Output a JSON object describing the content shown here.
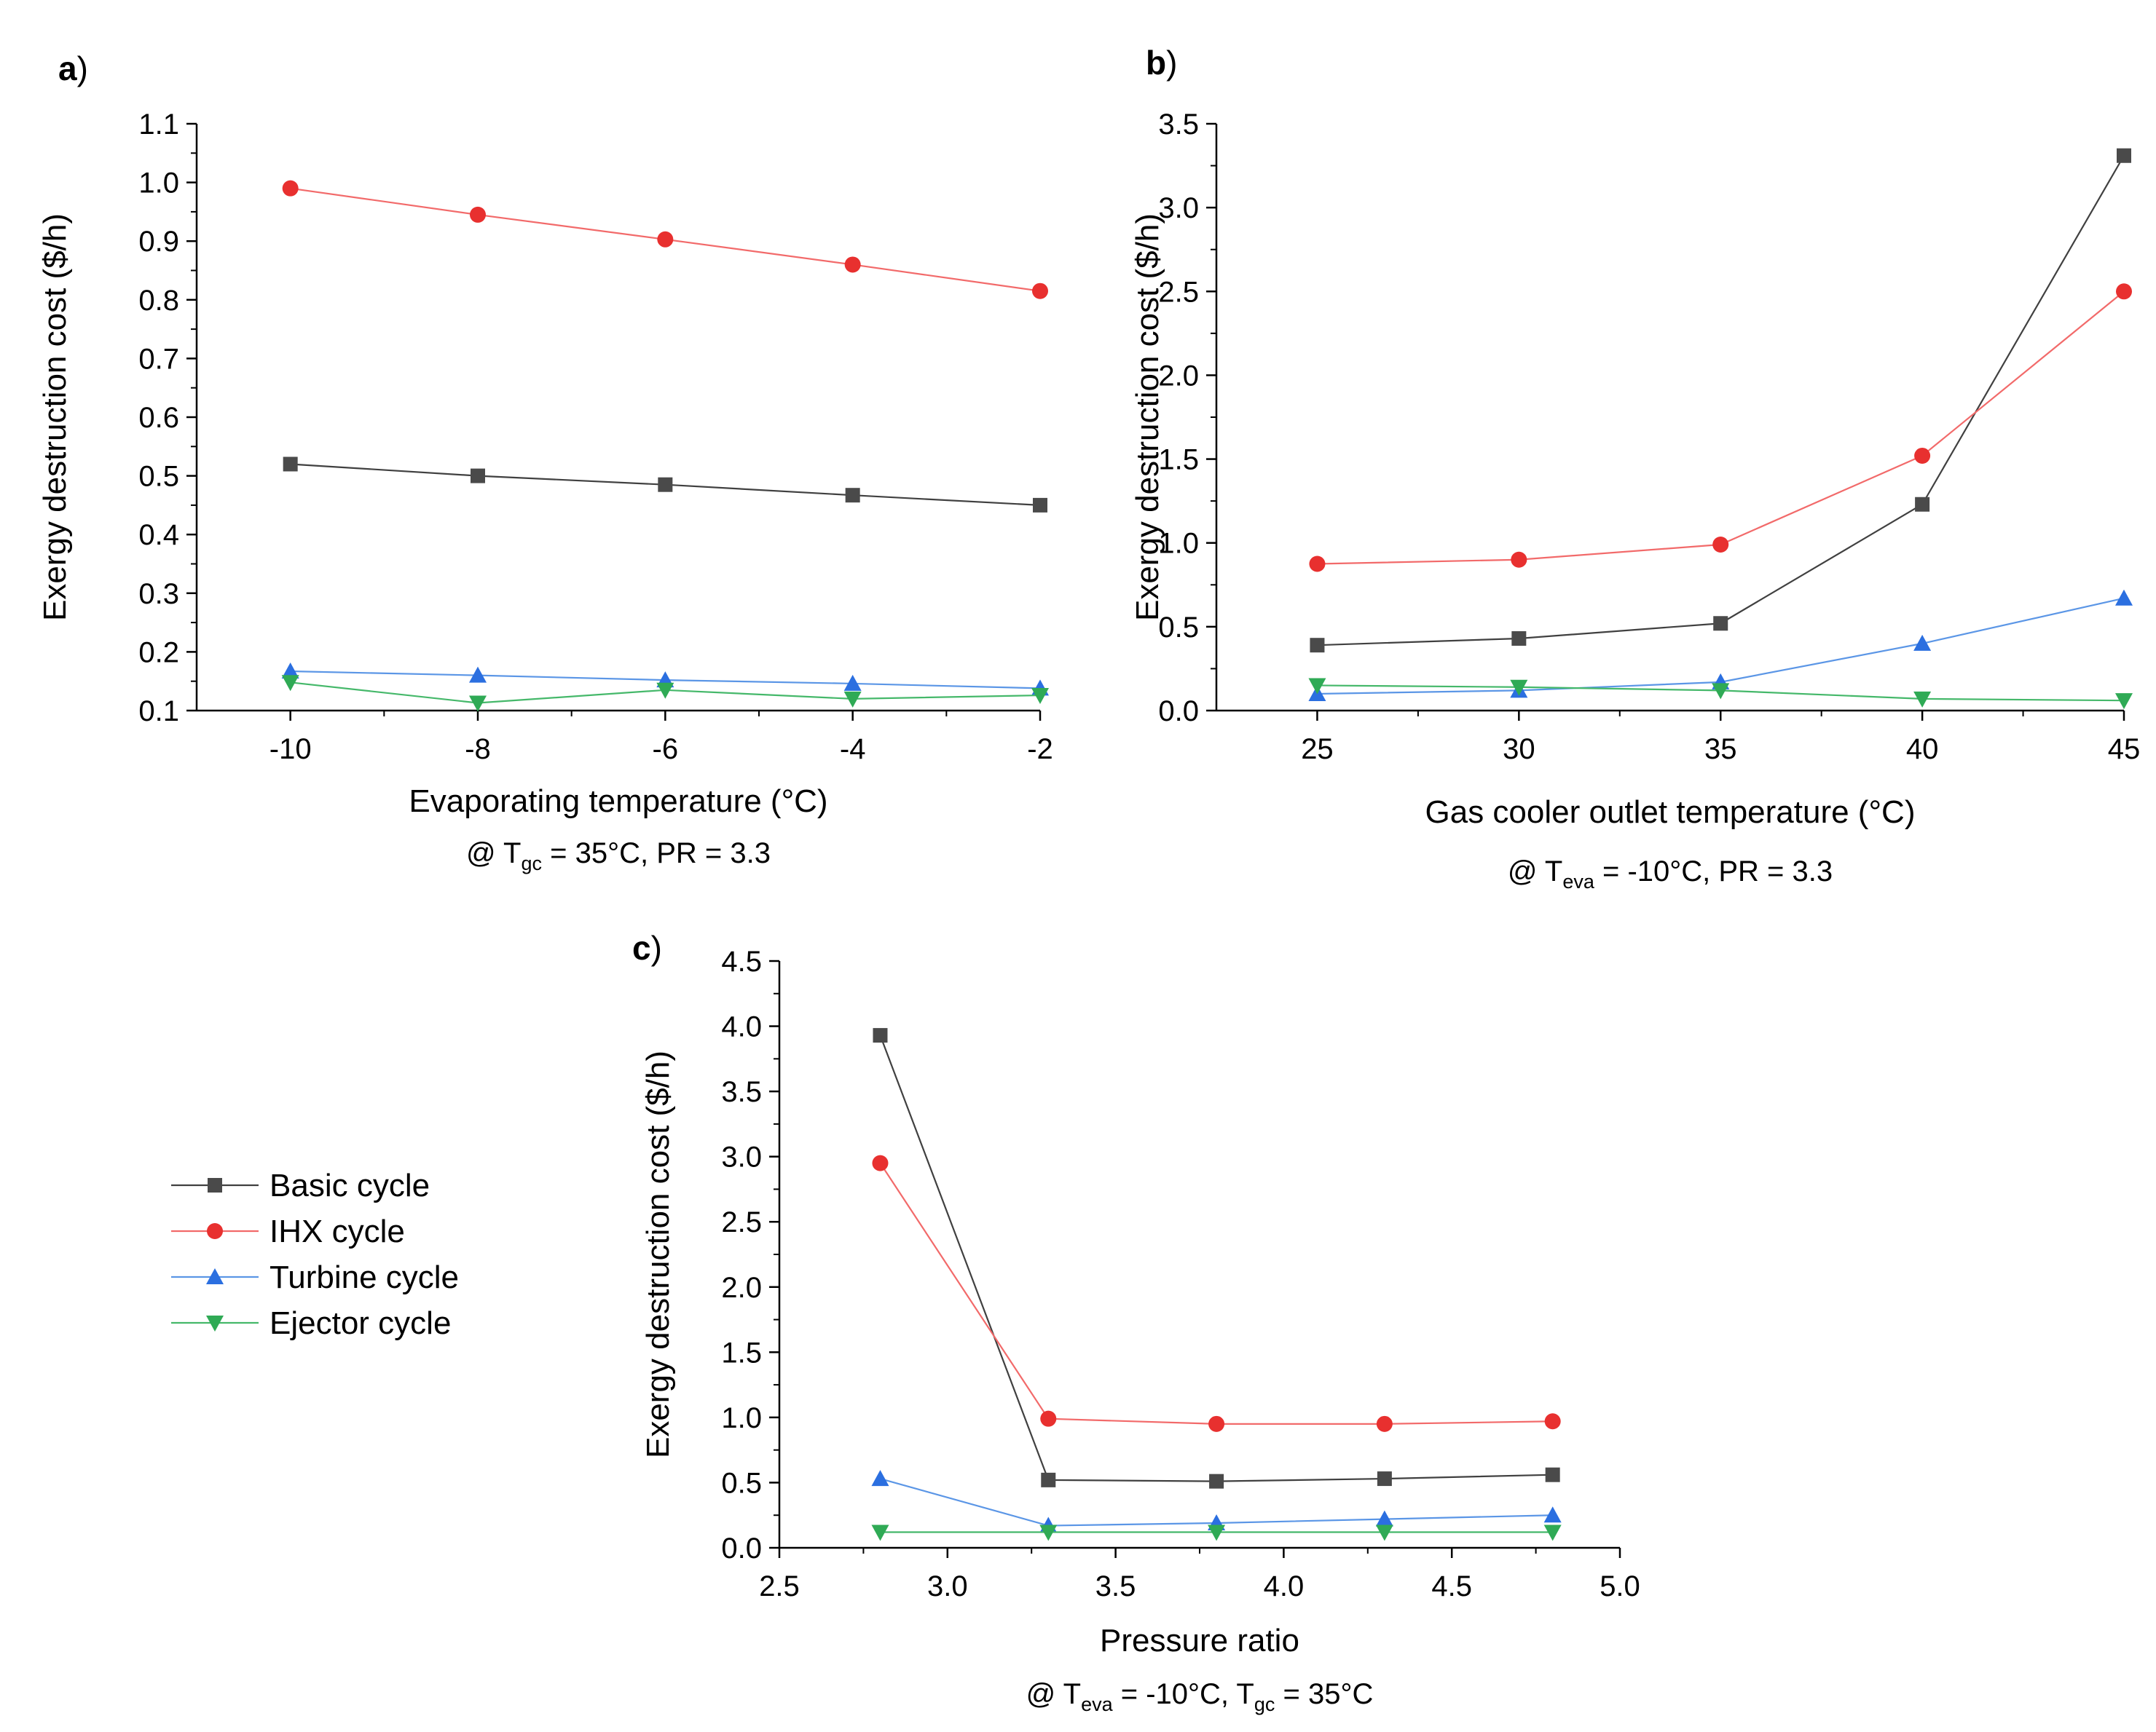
{
  "legend": {
    "entries": [
      {
        "label": "Basic cycle",
        "marker": "square",
        "color": "#404040",
        "marker_color": "#4a4a4a"
      },
      {
        "label": "IHX cycle",
        "marker": "circle",
        "color": "#f26a6a",
        "marker_color": "#e8302f"
      },
      {
        "label": "Turbine cycle",
        "marker": "triangle-up",
        "color": "#5b96e6",
        "marker_color": "#2b6fe0"
      },
      {
        "label": "Ejector cycle",
        "marker": "triangle-down",
        "color": "#45b86a",
        "marker_color": "#2faa55"
      }
    ]
  },
  "chart_data": [
    {
      "panel_letter": "a",
      "panel_paren": ")",
      "type": "line",
      "title": "",
      "xlabel": "Evaporating temperature (°C)",
      "ylabel": "Exergy destruction cost ($/h)",
      "subtitle": {
        "prefix": "@ T",
        "sub1": "gc",
        "mid": " = 35°C, PR = 3.3",
        "sub2": "",
        "suffix": ""
      },
      "xlim": [
        -11,
        -2
      ],
      "ylim": [
        0.1,
        1.1
      ],
      "xticks": [
        -10,
        -8,
        -6,
        -4,
        -2
      ],
      "xtick_labels": [
        "-10",
        "-8",
        "-6",
        "-4",
        "-2"
      ],
      "yticks": [
        0.1,
        0.2,
        0.3,
        0.4,
        0.5,
        0.6,
        0.7,
        0.8,
        0.9,
        1.0,
        1.1
      ],
      "ytick_labels": [
        "0.1",
        "0.2",
        "0.3",
        "0.4",
        "0.5",
        "0.6",
        "0.7",
        "0.8",
        "0.9",
        "1.0",
        "1.1"
      ],
      "x": [
        -10,
        -8,
        -6,
        -4,
        -2
      ],
      "series": [
        {
          "name": "Basic cycle",
          "values": [
            0.52,
            0.5,
            0.485,
            0.467,
            0.45
          ]
        },
        {
          "name": "IHX cycle",
          "values": [
            0.99,
            0.945,
            0.903,
            0.86,
            0.815
          ]
        },
        {
          "name": "Turbine cycle",
          "values": [
            0.167,
            0.16,
            0.152,
            0.146,
            0.138
          ]
        },
        {
          "name": "Ejector cycle",
          "values": [
            0.148,
            0.113,
            0.135,
            0.12,
            0.126
          ]
        }
      ]
    },
    {
      "panel_letter": "b",
      "panel_paren": ")",
      "type": "line",
      "title": "",
      "xlabel": "Gas cooler outlet temperature (°C)",
      "ylabel": "Exergy destruction cost ($/h)",
      "subtitle": {
        "prefix": "@ T",
        "sub1": "eva",
        "mid": " = -10°C, PR = 3.3",
        "sub2": "",
        "suffix": ""
      },
      "xlim": [
        22.5,
        45
      ],
      "ylim": [
        0,
        3.5
      ],
      "xticks": [
        25,
        30,
        35,
        40,
        45
      ],
      "xtick_labels": [
        "25",
        "30",
        "35",
        "40",
        "45"
      ],
      "yticks": [
        0,
        0.5,
        1.0,
        1.5,
        2.0,
        2.5,
        3.0,
        3.5
      ],
      "ytick_labels": [
        "0.0",
        "0.5",
        "1.0",
        "1.5",
        "2.0",
        "2.5",
        "3.0",
        "3.5"
      ],
      "x": [
        25,
        30,
        35,
        40,
        45
      ],
      "series": [
        {
          "name": "Basic cycle",
          "values": [
            0.39,
            0.43,
            0.52,
            1.23,
            3.31
          ]
        },
        {
          "name": "IHX cycle",
          "values": [
            0.875,
            0.9,
            0.99,
            1.52,
            2.5
          ]
        },
        {
          "name": "Turbine cycle",
          "values": [
            0.1,
            0.12,
            0.17,
            0.4,
            0.67
          ]
        },
        {
          "name": "Ejector cycle",
          "values": [
            0.15,
            0.14,
            0.12,
            0.07,
            0.06
          ]
        }
      ]
    },
    {
      "panel_letter": "c",
      "panel_paren": ")",
      "type": "line",
      "title": "",
      "xlabel": "Pressure ratio",
      "ylabel": "Exergy destruction cost ($/h)",
      "subtitle": {
        "prefix": "@ T",
        "sub1": "eva",
        "mid": " = -10°C, T",
        "sub2": "gc",
        "suffix": " = 35°C"
      },
      "xlim": [
        2.5,
        5.0
      ],
      "ylim": [
        0,
        4.5
      ],
      "xticks": [
        2.5,
        3.0,
        3.5,
        4.0,
        4.5,
        5.0
      ],
      "xtick_labels": [
        "2.5",
        "3.0",
        "3.5",
        "4.0",
        "4.5",
        "5.0"
      ],
      "yticks": [
        0,
        0.5,
        1.0,
        1.5,
        2.0,
        2.5,
        3.0,
        3.5,
        4.0,
        4.5
      ],
      "ytick_labels": [
        "0.0",
        "0.5",
        "1.0",
        "1.5",
        "2.0",
        "2.5",
        "3.0",
        "3.5",
        "4.0",
        "4.5"
      ],
      "x": [
        2.8,
        3.3,
        3.8,
        4.3,
        4.8
      ],
      "series": [
        {
          "name": "Basic cycle",
          "values": [
            3.93,
            0.52,
            0.51,
            0.53,
            0.56
          ]
        },
        {
          "name": "IHX cycle",
          "values": [
            2.95,
            0.99,
            0.95,
            0.95,
            0.97
          ]
        },
        {
          "name": "Turbine cycle",
          "values": [
            0.53,
            0.17,
            0.19,
            0.22,
            0.25
          ]
        },
        {
          "name": "Ejector cycle",
          "values": [
            0.12,
            0.12,
            0.12,
            0.12,
            0.12
          ]
        }
      ]
    }
  ]
}
